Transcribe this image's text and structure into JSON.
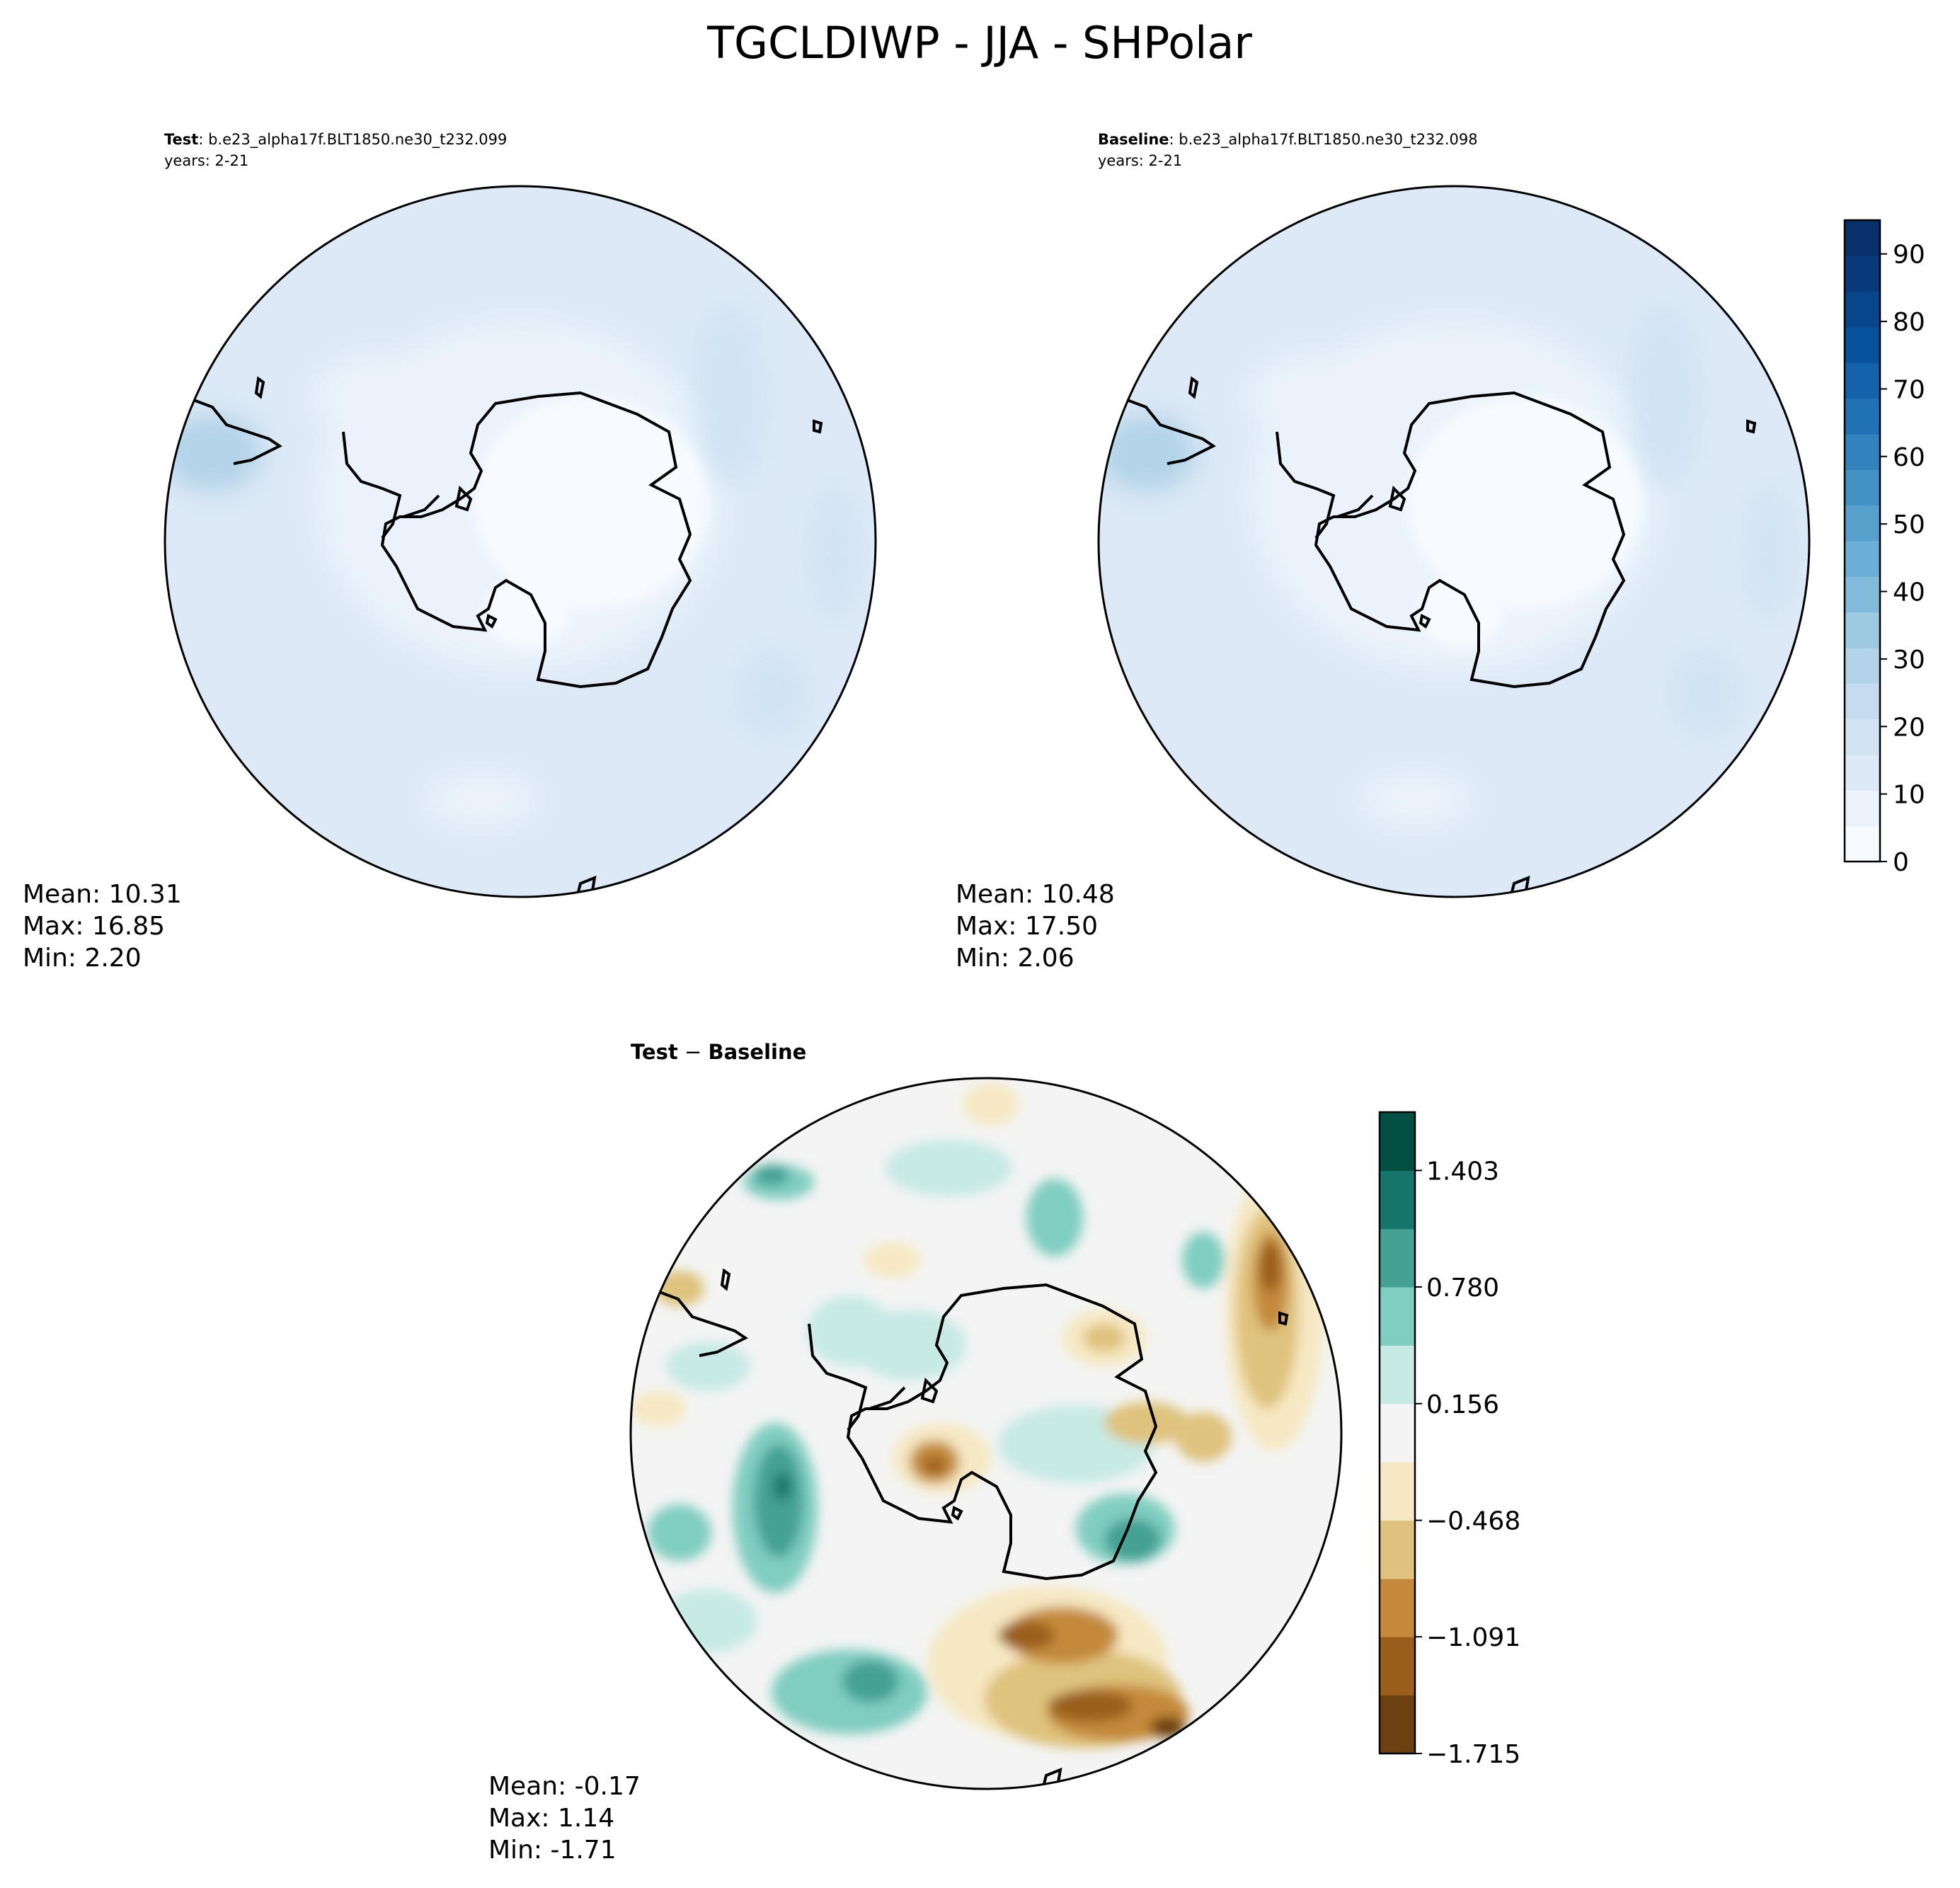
{
  "figure": {
    "title": "TGCLDIWP - JJA - SHPolar"
  },
  "panels": {
    "test": {
      "label_bold": "Test",
      "label_rest": ": b.e23_alpha17f.BLT1850.ne30_t232.099",
      "years": "years: 2-21",
      "stats": {
        "mean": "Mean: 10.31",
        "max": "Max: 16.85",
        "min": "Min:  2.20"
      }
    },
    "baseline": {
      "label_bold": "Baseline",
      "label_rest": ": b.e23_alpha17f.BLT1850.ne30_t232.098",
      "years": "years: 2-21",
      "stats": {
        "mean": "Mean: 10.48",
        "max": "Max: 17.50",
        "min": "Min:  2.06"
      }
    },
    "diff": {
      "title_a": "Test",
      "title_op": " − ",
      "title_b": "Baseline",
      "stats": {
        "mean": "Mean: -0.17",
        "max": "Max:  1.14",
        "min": "Min: -1.71"
      }
    }
  },
  "colorbars": {
    "abs": {
      "ticks": [
        "0",
        "10",
        "20",
        "30",
        "40",
        "50",
        "60",
        "70",
        "80",
        "90"
      ],
      "tick_values": [
        0,
        10,
        20,
        30,
        40,
        50,
        60,
        70,
        80,
        90
      ],
      "range": [
        0,
        95
      ],
      "colors": [
        "#f7fbff",
        "#eaf3fb",
        "#dde9f6",
        "#d2e3f3",
        "#c6dbef",
        "#b2d3e8",
        "#9ecae1",
        "#82badb",
        "#6baed6",
        "#58a0ce",
        "#4292c6",
        "#3282be",
        "#2171b5",
        "#1462a9",
        "#08519c",
        "#08458a",
        "#083a7a",
        "#08306b"
      ]
    },
    "diff": {
      "ticks": [
        "1.403",
        "0.780",
        "0.156",
        "−0.468",
        "−1.091",
        "−1.715"
      ],
      "levels": [
        -1.715,
        -1.403,
        -1.091,
        -0.78,
        -0.468,
        -0.156,
        0.156,
        0.468,
        0.78,
        1.091,
        1.403,
        1.715
      ],
      "colors": [
        "#6d4010",
        "#9a5e1c",
        "#c4893a",
        "#dfc27d",
        "#f6e8c3",
        "#f3f4f3",
        "#c7eae5",
        "#80cdc1",
        "#45a193",
        "#15756a",
        "#024f43"
      ]
    }
  }
}
